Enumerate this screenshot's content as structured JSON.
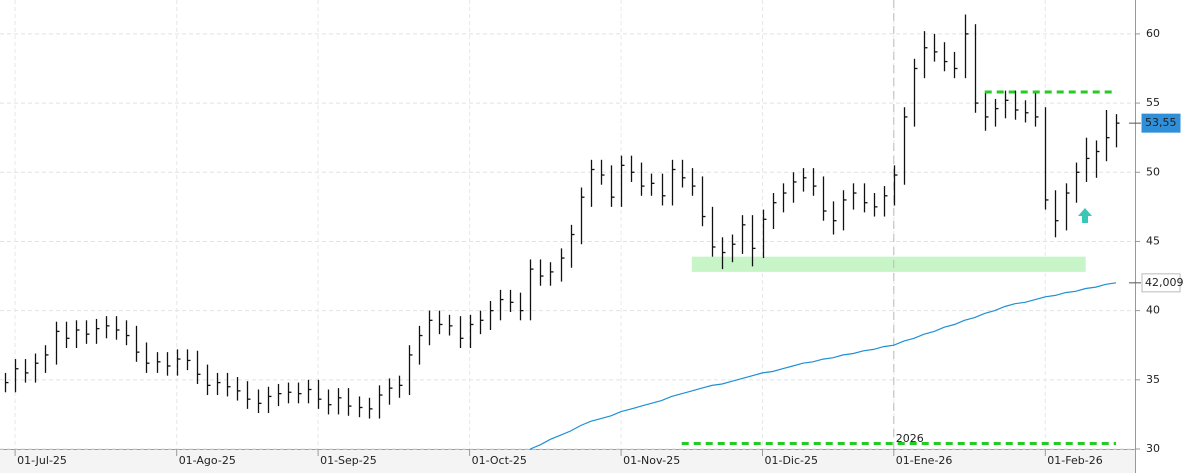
{
  "chart_data": {
    "type": "ohlc",
    "categories": [
      null,
      "01-Jul-25",
      null,
      null,
      null,
      null,
      null,
      null,
      null,
      null,
      null,
      null,
      null,
      null,
      null,
      null,
      null,
      "01-Ago-25",
      null,
      null,
      null,
      null,
      null,
      null,
      null,
      null,
      null,
      null,
      null,
      null,
      null,
      "01-Sep-25",
      null,
      null,
      null,
      null,
      null,
      null,
      null,
      null,
      null,
      null,
      null,
      null,
      null,
      null,
      "01-Oct-25",
      null,
      null,
      null,
      null,
      null,
      null,
      null,
      null,
      null,
      null,
      null,
      null,
      null,
      null,
      "01-Nov-25",
      null,
      null,
      null,
      null,
      null,
      null,
      null,
      null,
      null,
      null,
      null,
      null,
      null,
      "01-Dic-25",
      null,
      null,
      null,
      null,
      null,
      null,
      null,
      null,
      null,
      null,
      null,
      null,
      "01-Ene-26",
      null,
      null,
      null,
      null,
      null,
      null,
      null,
      null,
      null,
      null,
      null,
      null,
      null,
      null,
      "01-Feb-26",
      null,
      null,
      null,
      null,
      null,
      null,
      null
    ],
    "series": [
      {
        "name": null,
        "color": "#111111",
        "high": [
          35.5,
          36.5,
          36.5,
          36.9,
          37.5,
          39.2,
          39.2,
          39.3,
          39.3,
          39.4,
          39.6,
          39.6,
          39.3,
          38.9,
          37.7,
          37.0,
          37.0,
          37.2,
          37.2,
          37.1,
          36.1,
          35.5,
          35.5,
          35.2,
          34.9,
          34.3,
          34.5,
          34.7,
          34.8,
          34.8,
          35.0,
          35.0,
          34.3,
          34.4,
          34.4,
          33.8,
          33.7,
          34.6,
          35.1,
          35.3,
          37.5,
          38.9,
          40.0,
          40.0,
          39.7,
          39.6,
          39.7,
          40.0,
          40.7,
          41.5,
          41.5,
          41.3,
          43.7,
          43.7,
          43.5,
          44.5,
          46.2,
          48.9,
          50.9,
          50.9,
          50.5,
          51.2,
          51.2,
          50.7,
          49.9,
          49.9,
          50.9,
          50.9,
          50.3,
          49.7,
          47.5,
          45.3,
          45.5,
          46.9,
          46.9,
          47.3,
          48.5,
          49.2,
          50.0,
          50.3,
          50.3,
          49.7,
          47.9,
          48.7,
          49.2,
          49.2,
          48.5,
          49.0,
          50.5,
          54.7,
          58.2,
          60.2,
          60.0,
          59.4,
          58.7,
          61.4,
          60.7,
          55.7,
          55.3,
          55.9,
          55.9,
          55.2,
          55.7,
          54.7,
          48.7,
          49.2,
          50.7,
          52.5,
          52.3,
          54.5,
          54.2
        ],
        "low": [
          34.1,
          34.1,
          34.8,
          34.8,
          35.5,
          36.1,
          37.3,
          37.3,
          37.6,
          37.6,
          38.0,
          37.9,
          37.5,
          36.3,
          35.5,
          35.5,
          35.3,
          35.3,
          35.7,
          34.7,
          33.9,
          33.9,
          33.8,
          33.5,
          32.9,
          32.6,
          32.6,
          33.1,
          33.3,
          33.3,
          33.3,
          32.9,
          32.5,
          32.5,
          32.4,
          32.3,
          32.2,
          32.2,
          33.2,
          33.7,
          33.9,
          36.1,
          37.5,
          38.3,
          38.2,
          37.3,
          37.3,
          38.3,
          38.6,
          39.3,
          39.9,
          39.3,
          39.3,
          41.8,
          41.8,
          42.1,
          43.1,
          44.8,
          47.5,
          49.1,
          47.5,
          47.5,
          49.3,
          48.3,
          48.3,
          47.6,
          47.6,
          48.9,
          48.3,
          46.1,
          43.9,
          43.0,
          43.5,
          44.1,
          43.2,
          43.8,
          45.9,
          47.1,
          47.8,
          48.6,
          48.3,
          46.5,
          45.5,
          45.8,
          47.3,
          47.1,
          46.8,
          46.8,
          47.6,
          49.1,
          53.3,
          56.8,
          58.0,
          57.3,
          56.8,
          56.8,
          54.3,
          53.0,
          53.3,
          53.9,
          53.8,
          53.6,
          53.3,
          47.3,
          45.3,
          45.8,
          47.8,
          49.3,
          49.6,
          50.8,
          51.8
        ],
        "close": [
          34.8,
          35.8,
          35.5,
          36.2,
          36.8,
          38.5,
          38.0,
          38.6,
          38.3,
          38.7,
          38.9,
          38.6,
          38.2,
          37.0,
          36.2,
          36.3,
          36.0,
          36.5,
          36.4,
          35.4,
          34.6,
          34.8,
          34.5,
          34.2,
          33.6,
          33.3,
          33.8,
          34.0,
          34.1,
          34.0,
          34.3,
          33.6,
          33.2,
          33.7,
          33.1,
          33.0,
          32.9,
          33.9,
          34.4,
          34.6,
          36.8,
          38.2,
          39.3,
          39.0,
          38.9,
          38.0,
          39.0,
          39.3,
          40.0,
          40.8,
          40.6,
          40.0,
          43.0,
          42.5,
          42.8,
          43.8,
          45.5,
          48.2,
          50.2,
          49.8,
          48.2,
          50.5,
          50.0,
          49.0,
          49.2,
          48.3,
          50.2,
          49.6,
          49.0,
          46.8,
          44.6,
          44.2,
          44.8,
          46.2,
          44.5,
          46.6,
          47.8,
          48.5,
          49.3,
          49.6,
          49.0,
          47.2,
          46.5,
          48.0,
          48.5,
          47.8,
          47.5,
          48.3,
          49.8,
          54.0,
          57.5,
          59.0,
          58.7,
          58.0,
          57.5,
          60.0,
          55.0,
          54.0,
          54.6,
          55.2,
          54.5,
          54.3,
          54.0,
          48.0,
          46.5,
          48.5,
          50.0,
          51.0,
          51.5,
          52.5,
          53.55
        ]
      },
      {
        "name": null,
        "type": "line",
        "color": "#1e90d6",
        "values": [
          null,
          null,
          null,
          null,
          null,
          null,
          null,
          null,
          null,
          null,
          null,
          null,
          null,
          null,
          null,
          null,
          null,
          null,
          null,
          null,
          null,
          null,
          null,
          null,
          null,
          null,
          null,
          null,
          null,
          null,
          null,
          null,
          null,
          null,
          null,
          null,
          null,
          null,
          null,
          null,
          null,
          null,
          null,
          null,
          null,
          null,
          null,
          null,
          null,
          null,
          null,
          null,
          30.0,
          30.3,
          30.7,
          31.0,
          31.3,
          31.7,
          32.0,
          32.2,
          32.4,
          32.7,
          32.9,
          33.1,
          33.3,
          33.5,
          33.8,
          34.0,
          34.2,
          34.4,
          34.6,
          34.7,
          34.9,
          35.1,
          35.3,
          35.5,
          35.6,
          35.8,
          36.0,
          36.2,
          36.3,
          36.5,
          36.6,
          36.8,
          36.9,
          37.1,
          37.2,
          37.4,
          37.5,
          37.8,
          38.0,
          38.3,
          38.5,
          38.8,
          39.0,
          39.3,
          39.5,
          39.8,
          40.0,
          40.3,
          40.5,
          40.6,
          40.8,
          41.0,
          41.1,
          41.3,
          41.4,
          41.6,
          41.7,
          41.9,
          42.009
        ]
      }
    ],
    "price_markers": [
      {
        "value": 53.55,
        "label": "53,55",
        "color": "#2f8fd8",
        "text_color": "#ffffff"
      },
      {
        "value": 42.009,
        "label": "42,009",
        "color": "#ffffff",
        "text_color": "#222222"
      }
    ],
    "levels": [
      {
        "value": 55.8,
        "from": 97,
        "to": 110,
        "color": "#22cc22"
      },
      {
        "value": 30.4,
        "from": 67,
        "to": 110,
        "color": "#22cc22"
      }
    ],
    "zone": {
      "low": 42.8,
      "high": 43.9,
      "from": 68,
      "to": 107,
      "color": "#c8f5c8"
    },
    "year_marker": {
      "label": "2026",
      "index": 88
    },
    "ylim": [
      30,
      62.45
    ],
    "yticks": [
      30,
      35,
      40,
      45,
      50,
      55,
      60
    ],
    "grid": true
  }
}
